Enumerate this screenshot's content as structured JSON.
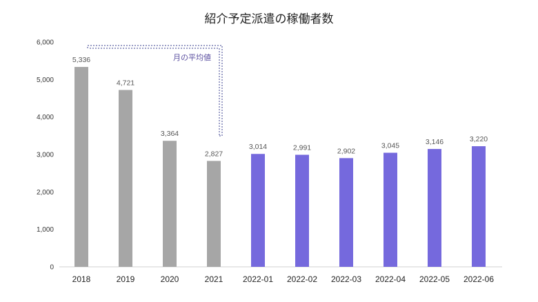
{
  "chart_data": {
    "type": "bar",
    "title": "紹介予定派遣の稼働者数",
    "xlabel": "",
    "ylabel": "",
    "ylim": [
      0,
      6000
    ],
    "yticks": [
      "0",
      "1,000",
      "2,000",
      "3,000",
      "4,000",
      "5,000",
      "6,000"
    ],
    "categories": [
      "2018",
      "2019",
      "2020",
      "2021",
      "2022-01",
      "2022-02",
      "2022-03",
      "2022-04",
      "2022-05",
      "2022-06"
    ],
    "values": [
      5336,
      4721,
      3364,
      2827,
      3014,
      2991,
      2902,
      3045,
      3146,
      3220
    ],
    "data_labels": [
      "5,336",
      "4,721",
      "3,364",
      "2,827",
      "3,014",
      "2,991",
      "2,902",
      "3,045",
      "3,146",
      "3,220"
    ],
    "grid": false,
    "legend": "none",
    "annotation": "月の平均値",
    "colors": {
      "annual": "#a6a6a6",
      "monthly": "#7569dd",
      "annotation": "#5b4fa0"
    }
  }
}
